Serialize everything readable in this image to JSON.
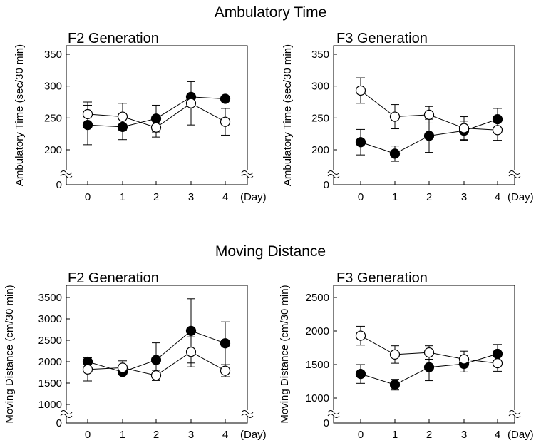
{
  "sections": {
    "ambulatory_title": "Ambulatory Time",
    "moving_title": "Moving Distance"
  },
  "chart_data": [
    {
      "type": "line",
      "title": "F2 Generation",
      "xlabel": "(Day)",
      "ylabel": "Ambulatory Time (sec/30 min)",
      "x": [
        0,
        1,
        2,
        3,
        4
      ],
      "ylim": [
        0,
        350
      ],
      "yticks": [
        0,
        200,
        250,
        300,
        350
      ],
      "axis_break": true,
      "series": [
        {
          "marker": "filled-circle",
          "color": "#000000",
          "values": [
            239,
            236,
            249,
            283,
            280
          ],
          "error": [
            31,
            20,
            21,
            0,
            0
          ]
        },
        {
          "marker": "open-circle",
          "color": "#000000",
          "values": [
            256,
            252,
            235,
            273,
            244
          ],
          "error": [
            19,
            21,
            15,
            34,
            21
          ]
        }
      ]
    },
    {
      "type": "line",
      "title": "F3 Generation",
      "xlabel": "(Day)",
      "ylabel": "Ambulatory Time (sec/30 min)",
      "x": [
        0,
        1,
        2,
        3,
        4
      ],
      "ylim": [
        0,
        350
      ],
      "yticks": [
        0,
        200,
        250,
        300,
        350
      ],
      "axis_break": true,
      "series": [
        {
          "marker": "filled-circle",
          "color": "#000000",
          "values": [
            212,
            194,
            222,
            230,
            248
          ],
          "error": [
            20,
            12,
            26,
            15,
            17
          ]
        },
        {
          "marker": "open-circle",
          "color": "#000000",
          "values": [
            293,
            252,
            255,
            234,
            231
          ],
          "error": [
            20,
            19,
            13,
            18,
            16
          ]
        }
      ]
    },
    {
      "type": "line",
      "title": "F2 Generation",
      "xlabel": "(Day)",
      "ylabel": "Moving Distance (cm/30 min)",
      "x": [
        0,
        1,
        2,
        3,
        4
      ],
      "ylim": [
        0,
        3500
      ],
      "yticks": [
        0,
        1000,
        1500,
        2000,
        2500,
        3000,
        3500
      ],
      "axis_break": true,
      "series": [
        {
          "marker": "filled-circle",
          "color": "#000000",
          "values": [
            2000,
            1760,
            2040,
            2720,
            2430
          ],
          "error": [
            0,
            0,
            400,
            750,
            500
          ]
        },
        {
          "marker": "open-circle",
          "color": "#000000",
          "values": [
            1820,
            1860,
            1680,
            2230,
            1790
          ],
          "error": [
            270,
            160,
            120,
            350,
            140
          ]
        }
      ]
    },
    {
      "type": "line",
      "title": "F3 Generation",
      "xlabel": "(Day)",
      "ylabel": "Moving Distance (cm/30 min)",
      "x": [
        0,
        1,
        2,
        3,
        4
      ],
      "ylim": [
        0,
        2500
      ],
      "yticks": [
        0,
        1000,
        1500,
        2000,
        2500
      ],
      "axis_break": true,
      "series": [
        {
          "marker": "filled-circle",
          "color": "#000000",
          "values": [
            1360,
            1200,
            1460,
            1510,
            1660
          ],
          "error": [
            140,
            80,
            200,
            120,
            140
          ]
        },
        {
          "marker": "open-circle",
          "color": "#000000",
          "values": [
            1930,
            1650,
            1680,
            1580,
            1520
          ],
          "error": [
            140,
            130,
            100,
            120,
            120
          ]
        }
      ]
    }
  ]
}
